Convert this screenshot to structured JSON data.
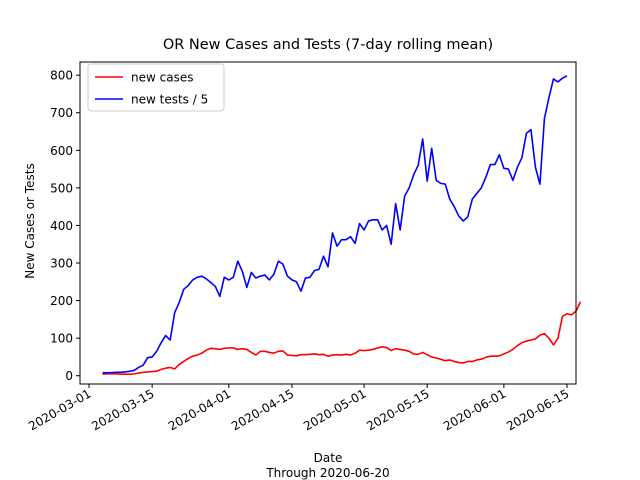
{
  "chart_data": {
    "type": "line",
    "title": "OR New Cases and Tests (7-day rolling mean)",
    "xlabel": "Date",
    "xlabel_sub": "Through 2020-06-20",
    "ylabel": "New Cases or Tests",
    "x_start": "2020-03-04",
    "x_step": "1 day",
    "xlim": [
      "2020-02-28",
      "2020-06-17"
    ],
    "ylim": [
      -22,
      835
    ],
    "x_ticks": [
      "2020-03-01",
      "2020-03-15",
      "2020-04-01",
      "2020-04-15",
      "2020-05-01",
      "2020-05-15",
      "2020-06-01",
      "2020-06-15"
    ],
    "y_ticks": [
      0,
      100,
      200,
      300,
      400,
      500,
      600,
      700,
      800
    ],
    "grid": false,
    "legend": "top-left",
    "series": [
      {
        "name": "new cases",
        "color": "#ff0000",
        "values": [
          4,
          5,
          5,
          5,
          4,
          4,
          4,
          5,
          7,
          9,
          10,
          11,
          12,
          17,
          20,
          22,
          18,
          30,
          38,
          46,
          52,
          55,
          60,
          68,
          73,
          72,
          70,
          73,
          74,
          74,
          70,
          72,
          70,
          62,
          55,
          65,
          65,
          62,
          60,
          65,
          66,
          55,
          54,
          53,
          56,
          56,
          57,
          58,
          56,
          57,
          52,
          55,
          56,
          55,
          57,
          55,
          60,
          68,
          67,
          68,
          70,
          74,
          77,
          75,
          67,
          72,
          70,
          68,
          65,
          58,
          57,
          62,
          56,
          50,
          47,
          44,
          40,
          42,
          38,
          35,
          34,
          38,
          38,
          42,
          44,
          49,
          52,
          52,
          53,
          58,
          63,
          70,
          80,
          88,
          92,
          95,
          98,
          108,
          112,
          100,
          82,
          100,
          158,
          165,
          162,
          172,
          197
        ]
      },
      {
        "name": "new tests / 5",
        "color": "#0000ff",
        "values": [
          8,
          8,
          8,
          9,
          9,
          10,
          12,
          14,
          22,
          28,
          48,
          50,
          65,
          88,
          107,
          95,
          168,
          195,
          230,
          240,
          255,
          262,
          265,
          258,
          248,
          238,
          211,
          262,
          255,
          262,
          305,
          278,
          235,
          275,
          260,
          265,
          268,
          255,
          270,
          305,
          297,
          265,
          255,
          250,
          225,
          260,
          262,
          280,
          283,
          318,
          290,
          380,
          345,
          362,
          362,
          370,
          352,
          405,
          388,
          412,
          415,
          415,
          388,
          400,
          350,
          458,
          388,
          478,
          500,
          535,
          560,
          630,
          518,
          605,
          520,
          512,
          510,
          470,
          450,
          425,
          412,
          423,
          470,
          485,
          500,
          528,
          562,
          562,
          588,
          552,
          550,
          520,
          555,
          580,
          645,
          655,
          555,
          510,
          685,
          740,
          790,
          782,
          792,
          798
        ]
      }
    ]
  }
}
